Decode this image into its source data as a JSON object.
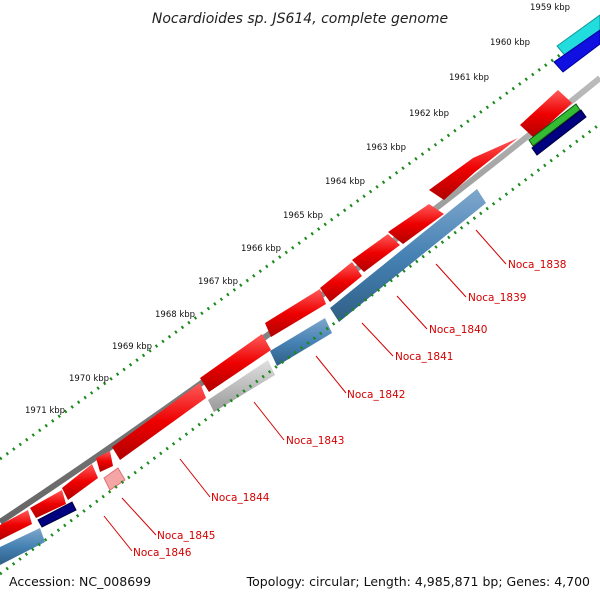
{
  "title": "Nocardioides sp. JS614, complete genome",
  "scale_ticks": [
    "1959 kbp",
    "1960 kbp",
    "1961 kbp",
    "1962 kbp",
    "1963 kbp",
    "1964 kbp",
    "1965 kbp",
    "1966 kbp",
    "1967 kbp",
    "1968 kbp",
    "1969 kbp",
    "1970 kbp",
    "1971 kbp"
  ],
  "gene_labels": [
    "Noca_1838",
    "Noca_1839",
    "Noca_1840",
    "Noca_1841",
    "Noca_1842",
    "Noca_1843",
    "Noca_1844",
    "Noca_1845",
    "Noca_1846"
  ],
  "footer": {
    "accession": "Accession: NC_008699",
    "summary": "Topology: circular; Length: 4,985,871 bp; Genes: 4,700"
  },
  "colors": {
    "forward_cds": "#ee0000",
    "reverse_cds": "#4682b4",
    "ticks": "#1a8a1a",
    "backbone": "#888888",
    "label": "#d40000"
  }
}
